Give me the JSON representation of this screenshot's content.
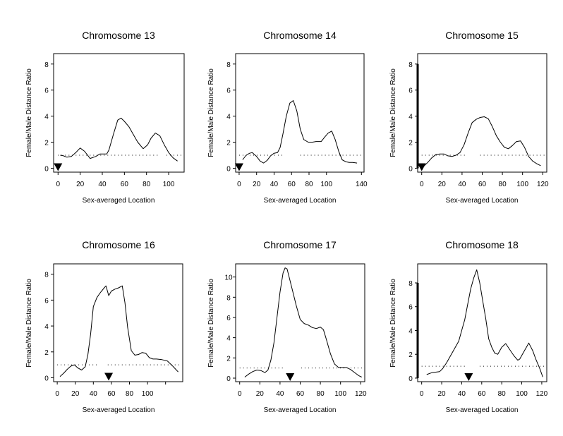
{
  "chart_data": [
    {
      "type": "line",
      "title": "Chromosome 13",
      "xlabel": "Sex-averaged Location",
      "ylabel": "Female/Male Distance Ratio",
      "xlim": [
        -4,
        114
      ],
      "ylim": [
        -0.3,
        8.8
      ],
      "xticks": [
        0,
        20,
        40,
        60,
        80,
        100
      ],
      "xtick_labels": [
        "0",
        "20",
        "40",
        "60",
        "80",
        "100"
      ],
      "yticks": [
        0,
        2,
        4,
        6,
        8
      ],
      "reference_line": {
        "y": 1,
        "segments": [
          [
            0,
            90
          ],
          [
            98,
            112
          ]
        ]
      },
      "bold_left_axis": false,
      "marker_x": 0,
      "x": [
        2,
        5,
        8,
        12,
        16,
        20,
        24,
        29,
        34,
        38,
        44,
        46,
        50,
        54,
        57,
        60,
        64,
        68,
        72,
        77,
        81,
        84,
        88,
        92,
        96,
        100,
        104,
        108
      ],
      "y": [
        1.0,
        0.95,
        0.85,
        0.9,
        1.2,
        1.55,
        1.3,
        0.75,
        0.9,
        1.1,
        1.1,
        1.4,
        2.6,
        3.7,
        3.85,
        3.6,
        3.2,
        2.6,
        2.0,
        1.5,
        1.8,
        2.3,
        2.7,
        2.5,
        1.8,
        1.2,
        0.8,
        0.55
      ]
    },
    {
      "type": "line",
      "title": "Chromosome 14",
      "xlabel": "Sex-averaged Location",
      "ylabel": "Female/Male Distance Ratio",
      "xlim": [
        -4,
        143
      ],
      "ylim": [
        -0.3,
        8.8
      ],
      "xticks": [
        0,
        20,
        40,
        60,
        80,
        100,
        140
      ],
      "xtick_labels": [
        "0",
        "20",
        "40",
        "60",
        "80",
        "100",
        "140"
      ],
      "yticks": [
        0,
        2,
        4,
        6,
        8
      ],
      "reference_line": {
        "y": 1,
        "segments": [
          [
            0,
            52
          ],
          [
            70,
            141
          ]
        ]
      },
      "bold_left_axis": false,
      "marker_x": 0,
      "x": [
        4,
        8,
        12,
        15,
        20,
        24,
        28,
        32,
        36,
        40,
        44,
        47,
        50,
        54,
        58,
        62,
        66,
        70,
        74,
        79,
        84,
        88,
        94,
        98,
        102,
        106,
        110,
        114,
        118,
        122,
        126,
        130,
        135
      ],
      "y": [
        0.65,
        1.0,
        1.15,
        1.2,
        0.9,
        0.55,
        0.4,
        0.6,
        0.95,
        1.15,
        1.2,
        1.6,
        2.6,
        4.0,
        5.0,
        5.2,
        4.4,
        3.0,
        2.2,
        2.0,
        2.0,
        2.05,
        2.05,
        2.4,
        2.7,
        2.85,
        2.2,
        1.3,
        0.65,
        0.5,
        0.45,
        0.45,
        0.4
      ]
    },
    {
      "type": "line",
      "title": "Chromosome 15",
      "xlabel": "Sex-averaged Location",
      "ylabel": "Female/Male Distance Ratio",
      "xlim": [
        -4,
        124
      ],
      "ylim": [
        -0.3,
        8.8
      ],
      "xticks": [
        0,
        20,
        40,
        60,
        80,
        100,
        120
      ],
      "xtick_labels": [
        "0",
        "20",
        "40",
        "60",
        "80",
        "100",
        "120"
      ],
      "yticks": [
        0,
        2,
        4,
        6,
        8
      ],
      "reference_line": {
        "y": 1,
        "segments": [
          [
            0,
            45
          ],
          [
            58,
            122
          ]
        ]
      },
      "bold_left_axis": true,
      "marker_x": 0,
      "x": [
        2,
        6,
        10,
        14,
        18,
        22,
        26,
        30,
        34,
        38,
        42,
        46,
        50,
        54,
        58,
        62,
        66,
        70,
        74,
        78,
        82,
        86,
        90,
        94,
        98,
        102,
        106,
        110,
        114,
        118
      ],
      "y": [
        0.15,
        0.45,
        0.8,
        1.05,
        1.1,
        1.1,
        0.95,
        0.9,
        1.0,
        1.2,
        1.8,
        2.7,
        3.5,
        3.75,
        3.9,
        3.95,
        3.8,
        3.2,
        2.5,
        2.0,
        1.6,
        1.5,
        1.75,
        2.05,
        2.1,
        1.6,
        0.9,
        0.55,
        0.35,
        0.2
      ]
    },
    {
      "type": "line",
      "title": "Chromosome 16",
      "xlabel": "Sex-averaged Location",
      "ylabel": "Female/Male Distance Ratio",
      "xlim": [
        -4,
        139
      ],
      "ylim": [
        -0.3,
        8.8
      ],
      "xticks": [
        0,
        20,
        40,
        60,
        80,
        100,
        120
      ],
      "xtick_labels": [
        "0",
        "20",
        "40",
        "60",
        "80",
        "100",
        ""
      ],
      "yticks": [
        0,
        2,
        4,
        6,
        8
      ],
      "reference_line": {
        "y": 1,
        "segments": [
          [
            0,
            44
          ],
          [
            56,
            136
          ]
        ]
      },
      "bold_left_axis": false,
      "marker_x": 57,
      "x": [
        3,
        7,
        11,
        15,
        19,
        23,
        27,
        31,
        34,
        37,
        40,
        44,
        48,
        52,
        54,
        57,
        60,
        64,
        68,
        72,
        75,
        78,
        82,
        86,
        90,
        94,
        98,
        102,
        106,
        110,
        116,
        122,
        128,
        134
      ],
      "y": [
        0.1,
        0.35,
        0.65,
        0.9,
        1.0,
        0.75,
        0.6,
        0.85,
        1.8,
        3.4,
        5.5,
        6.2,
        6.6,
        6.95,
        7.1,
        6.35,
        6.7,
        6.85,
        6.95,
        7.1,
        5.8,
        3.9,
        2.1,
        1.75,
        1.8,
        1.95,
        1.9,
        1.55,
        1.45,
        1.45,
        1.4,
        1.3,
        0.9,
        0.45
      ]
    },
    {
      "type": "line",
      "title": "Chromosome 17",
      "xlabel": "Sex-averaged Location",
      "ylabel": "Female/Male Distance Ratio",
      "xlim": [
        -4,
        124
      ],
      "ylim": [
        -0.35,
        11.3
      ],
      "xticks": [
        0,
        20,
        40,
        60,
        80,
        100,
        120
      ],
      "xtick_labels": [
        "0",
        "20",
        "40",
        "60",
        "80",
        "100",
        "120"
      ],
      "yticks": [
        0,
        2,
        4,
        6,
        8,
        10
      ],
      "reference_line": {
        "y": 1,
        "segments": [
          [
            0,
            45
          ],
          [
            61,
            122
          ]
        ]
      },
      "bold_left_axis": false,
      "marker_x": 50,
      "x": [
        5,
        9,
        13,
        17,
        21,
        25,
        28,
        31,
        34,
        37,
        40,
        43,
        45,
        47,
        49,
        52,
        56,
        60,
        64,
        68,
        72,
        76,
        80,
        83,
        86,
        90,
        94,
        98,
        102,
        106,
        110,
        114,
        118,
        121
      ],
      "y": [
        0.1,
        0.4,
        0.65,
        0.8,
        0.75,
        0.55,
        0.8,
        1.8,
        3.5,
        6.0,
        8.5,
        10.4,
        10.9,
        10.8,
        10.0,
        8.8,
        7.2,
        5.8,
        5.4,
        5.25,
        5.0,
        4.9,
        5.05,
        4.8,
        3.8,
        2.4,
        1.4,
        1.05,
        1.05,
        1.05,
        0.85,
        0.55,
        0.25,
        0.1
      ]
    },
    {
      "type": "line",
      "title": "Chromosome 18",
      "xlabel": "Sex-averaged Location",
      "ylabel": "Female/Male Distance Ratio",
      "xlim": [
        -4,
        125
      ],
      "ylim": [
        -0.3,
        9.6
      ],
      "xticks": [
        0,
        20,
        40,
        60,
        80,
        100,
        120
      ],
      "xtick_labels": [
        "0",
        "20",
        "40",
        "60",
        "80",
        "100",
        "120"
      ],
      "yticks": [
        0,
        2,
        4,
        6,
        8
      ],
      "reference_line": {
        "y": 1,
        "segments": [
          [
            0,
            45
          ],
          [
            58,
            123
          ]
        ]
      },
      "bold_left_axis": true,
      "marker_x": 47,
      "x": [
        5,
        10,
        14,
        18,
        21,
        25,
        29,
        33,
        37,
        40,
        43,
        46,
        49,
        52,
        55,
        58,
        61,
        64,
        67,
        70,
        73,
        76,
        80,
        84,
        88,
        92,
        96,
        98,
        102,
        107,
        111,
        114,
        118,
        121
      ],
      "y": [
        0.3,
        0.45,
        0.5,
        0.55,
        0.8,
        1.3,
        1.9,
        2.5,
        3.1,
        4.0,
        4.9,
        6.2,
        7.5,
        8.4,
        9.1,
        8.0,
        6.5,
        5.0,
        3.3,
        2.6,
        2.1,
        2.0,
        2.6,
        2.9,
        2.4,
        1.9,
        1.5,
        1.6,
        2.2,
        2.95,
        2.3,
        1.6,
        0.8,
        0.1
      ]
    }
  ]
}
